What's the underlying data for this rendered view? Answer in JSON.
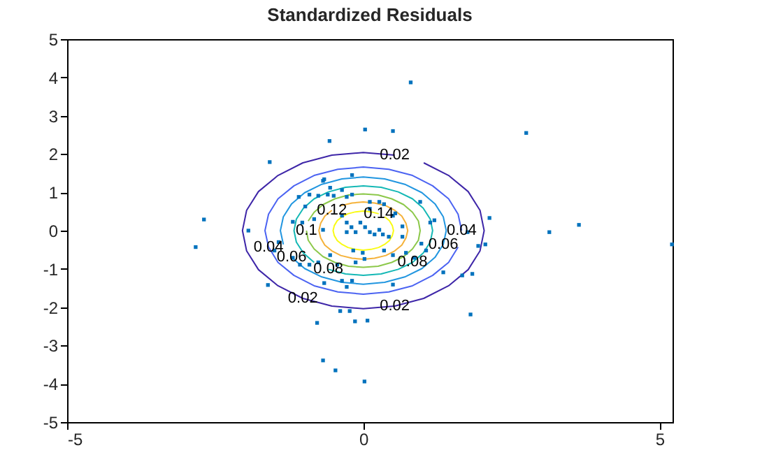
{
  "chart_data": {
    "type": "scatter",
    "title": "Standardized Residuals",
    "xlim": [
      -5,
      5.22
    ],
    "ylim": [
      -5,
      5
    ],
    "xticks": [
      -5,
      0,
      5
    ],
    "yticks": [
      -5,
      -4,
      -3,
      -2,
      -1,
      0,
      1,
      2,
      3,
      4,
      5
    ],
    "grid": false,
    "series": [
      {
        "marker": "square",
        "color": "#0072bd",
        "x": [
          0.8,
          0.03,
          0.5,
          2.75,
          -0.57,
          -1.58,
          -2.69,
          -2.83,
          3.14,
          3.64,
          5.21,
          2.13,
          2.06,
          1.94,
          1.84,
          1.67,
          1.81,
          1.35,
          1.76,
          -1.61,
          -1.94,
          -0.78,
          -0.14,
          0.07,
          -0.39,
          -0.23,
          -0.68,
          -0.47,
          0.02,
          -0.66,
          -0.19,
          -0.91,
          -0.76,
          -0.6,
          -0.5,
          -0.36,
          -0.28,
          -0.19,
          0.11,
          0.27,
          0.35,
          0.5,
          0.54,
          0.96,
          1.13,
          1.2,
          -1.19,
          -1.03,
          -0.98,
          -1.09,
          -0.68,
          -0.36,
          -0.28,
          -0.2,
          -0.13,
          -0.28,
          -0.05,
          0.03,
          0.11,
          0.19,
          0.27,
          0.33,
          0.43,
          0.66,
          0.66,
          -0.17,
          -0.01,
          0.35,
          0.5,
          0.98,
          1.06,
          0.86,
          0.72,
          -0.56,
          -0.76,
          -0.91,
          -1.07,
          -1.19,
          -1.43,
          -1.5,
          -0.36,
          -0.28,
          -0.19,
          -0.66,
          0.5,
          -0.13,
          -0.44,
          0.02,
          -0.68,
          -0.56,
          0.11,
          -0.83
        ],
        "values": [
          3.87,
          2.64,
          2.6,
          2.55,
          2.34,
          1.79,
          0.29,
          -0.43,
          -0.04,
          0.15,
          -0.36,
          0.33,
          -0.36,
          -0.4,
          -1.13,
          -1.17,
          -2.19,
          -1.09,
          -0.04,
          -1.42,
          0,
          -2.41,
          -2.37,
          -2.35,
          -2.1,
          -2.1,
          -3.39,
          -3.65,
          -3.94,
          1.34,
          1.45,
          0.94,
          0.91,
          0.94,
          0.91,
          1.06,
          0.88,
          0.94,
          0.75,
          0.75,
          0.69,
          0.39,
          0.45,
          0.75,
          0.21,
          0.27,
          0.23,
          0.21,
          0.63,
          0.88,
          0.02,
          0.39,
          0.21,
          0.09,
          -0.04,
          -0.04,
          0.21,
          0.09,
          -0.04,
          -0.1,
          0.02,
          -0.1,
          -0.16,
          0.11,
          -0.16,
          -0.52,
          -0.58,
          -0.52,
          -0.64,
          -0.34,
          -0.52,
          -0.71,
          -0.58,
          -0.64,
          -0.83,
          -0.89,
          -0.89,
          -0.71,
          -0.3,
          -0.52,
          -1.31,
          -1.47,
          -1.31,
          -1.37,
          -1.41,
          -0.83,
          -0.89,
          -0.74,
          1.3,
          1.12,
          0.57,
          0.3
        ]
      },
      {
        "type": "line",
        "line_style": "solid",
        "color": "#3e26a8",
        "x": [
          0.53,
          0,
          -0.53,
          -1.02,
          -1.44,
          -1.77,
          -1.97,
          -2.04,
          -1.97,
          -1.77,
          -1.44,
          -1.02,
          -0.53,
          0,
          0.53,
          1.02,
          1.44,
          1.77,
          1.97,
          2.04,
          1.97,
          1.77,
          1.44,
          1.02
        ],
        "values": [
          1.97,
          2.04,
          1.97,
          1.77,
          1.44,
          1.02,
          0.53,
          0,
          -0.53,
          -1.02,
          -1.44,
          -1.77,
          -1.97,
          -2.04,
          -1.97,
          -1.77,
          -1.44,
          -1.02,
          -0.53,
          0,
          0.53,
          1.02,
          1.44,
          1.77
        ]
      },
      {
        "type": "line",
        "line_style": "solid",
        "color": "#4b63f2",
        "x": [
          1.66,
          1.6,
          1.44,
          1.17,
          0.83,
          0.43,
          0,
          -0.43,
          -0.83,
          -1.17,
          -1.44,
          -1.6,
          -1.66,
          -1.6,
          -1.44,
          -1.17,
          -0.83,
          -0.43,
          0,
          0.43,
          0.83,
          1.17,
          1.44,
          1.6
        ],
        "values": [
          0,
          0.43,
          0.83,
          1.17,
          1.44,
          1.6,
          1.66,
          1.6,
          1.44,
          1.17,
          0.83,
          0.43,
          0,
          -0.43,
          -0.83,
          -1.17,
          -1.44,
          -1.6,
          -1.66,
          -1.6,
          -1.44,
          -1.17,
          -0.83,
          -0.43
        ]
      },
      {
        "type": "line",
        "line_style": "solid",
        "color": "#2196e0",
        "x": [
          -1.21,
          -0.99,
          -0.7,
          -0.36,
          0,
          0.36,
          0.7,
          0.99,
          1.21,
          1.35,
          1.4,
          1.35,
          1.21,
          0.99,
          0.7,
          0.36,
          0,
          -0.36,
          -0.7,
          -0.99,
          -1.21,
          -1.35,
          -1.4,
          -1.35
        ],
        "values": [
          -0.7,
          -0.99,
          -1.21,
          -1.35,
          -1.4,
          -1.35,
          -1.21,
          -0.99,
          -0.7,
          -0.36,
          0,
          0.36,
          0.7,
          0.99,
          1.21,
          1.35,
          1.4,
          1.35,
          1.21,
          0.99,
          0.7,
          0.36,
          0,
          -0.36
        ]
      },
      {
        "type": "line",
        "line_style": "solid",
        "color": "#14b8b5",
        "x": [
          -0.59,
          -0.3,
          0,
          0.3,
          0.59,
          0.83,
          1.01,
          1.13,
          1.17,
          1.13,
          1.01,
          0.83,
          0.59,
          0.3,
          0,
          -0.3,
          -0.59,
          -0.83,
          -1.01,
          -1.13,
          -1.17,
          -1.13,
          -1.01,
          -0.83
        ],
        "values": [
          -1.01,
          -1.13,
          -1.17,
          -1.13,
          -1.01,
          -0.83,
          -0.59,
          -0.3,
          0,
          0.3,
          0.59,
          0.83,
          1.01,
          1.13,
          1.17,
          1.13,
          1.01,
          0.83,
          0.59,
          0.3,
          0,
          -0.3,
          -0.59,
          -0.83
        ]
      },
      {
        "type": "line",
        "line_style": "solid",
        "color": "#8cc84a",
        "x": [
          -0.96,
          -0.93,
          -0.83,
          -0.68,
          -0.48,
          -0.25,
          0,
          0.25,
          0.48,
          0.68,
          0.83,
          0.93,
          0.96,
          0.93,
          0.83,
          0.68,
          0.48,
          0.25,
          0,
          -0.25,
          -0.48,
          -0.68,
          -0.83,
          -0.93
        ],
        "values": [
          0,
          -0.25,
          -0.48,
          -0.68,
          -0.83,
          -0.93,
          -0.96,
          -0.93,
          -0.83,
          -0.68,
          -0.48,
          -0.25,
          0,
          0.25,
          0.48,
          0.68,
          0.83,
          0.93,
          0.96,
          0.93,
          0.83,
          0.68,
          0.48,
          0.25
        ]
      },
      {
        "type": "line",
        "line_style": "solid",
        "color": "#f5b23a",
        "x": [
          -0.53,
          -0.65,
          -0.72,
          -0.75,
          -0.72,
          -0.65,
          -0.53,
          -0.38,
          -0.19,
          0,
          0.19,
          0.38,
          0.53,
          0.65,
          0.72,
          0.75,
          0.72,
          0.65,
          0.53,
          0.38,
          0.19,
          0,
          -0.19,
          -0.38
        ],
        "values": [
          0.53,
          0.38,
          0.19,
          0,
          -0.19,
          -0.38,
          -0.53,
          -0.65,
          -0.72,
          -0.75,
          -0.72,
          -0.65,
          -0.53,
          -0.38,
          -0.19,
          0,
          0.19,
          0.38,
          0.53,
          0.65,
          0.72,
          0.75,
          0.72,
          0.65
        ]
      },
      {
        "type": "line",
        "line_style": "solid",
        "color": "#f9fb15",
        "x": [
          0.26,
          0.13,
          0,
          -0.13,
          -0.26,
          -0.36,
          -0.44,
          -0.49,
          -0.51,
          -0.49,
          -0.44,
          -0.36,
          -0.26,
          -0.13,
          0,
          0.13,
          0.26,
          0.36,
          0.44,
          0.49,
          0.51,
          0.49,
          0.44,
          0.36
        ],
        "values": [
          0.44,
          0.49,
          0.51,
          0.49,
          0.44,
          0.36,
          0.26,
          0.13,
          0,
          -0.13,
          -0.26,
          -0.36,
          -0.44,
          -0.49,
          -0.51,
          -0.49,
          -0.44,
          -0.36,
          -0.26,
          -0.13,
          0,
          0.13,
          0.26,
          0.36
        ]
      }
    ],
    "annotations": [
      {
        "text": "0.02",
        "x": 0.53,
        "y": 1.97
      },
      {
        "text": "0.02",
        "x": 0.53,
        "y": -1.97
      },
      {
        "text": "0.02",
        "x": -1.02,
        "y": -1.77
      },
      {
        "text": "0.04",
        "x": 1.66,
        "y": 0
      },
      {
        "text": "0.04",
        "x": -1.6,
        "y": -0.43
      },
      {
        "text": "0.06",
        "x": 1.35,
        "y": -0.36
      },
      {
        "text": "0.06",
        "x": -1.21,
        "y": -0.7
      },
      {
        "text": "0.08",
        "x": 0.83,
        "y": -0.83
      },
      {
        "text": "0.08",
        "x": -0.59,
        "y": -1.01
      },
      {
        "text": "0.1",
        "x": -0.96,
        "y": 0
      },
      {
        "text": "0.12",
        "x": -0.53,
        "y": 0.53
      },
      {
        "text": "0.14",
        "x": 0.26,
        "y": 0.44
      }
    ]
  }
}
